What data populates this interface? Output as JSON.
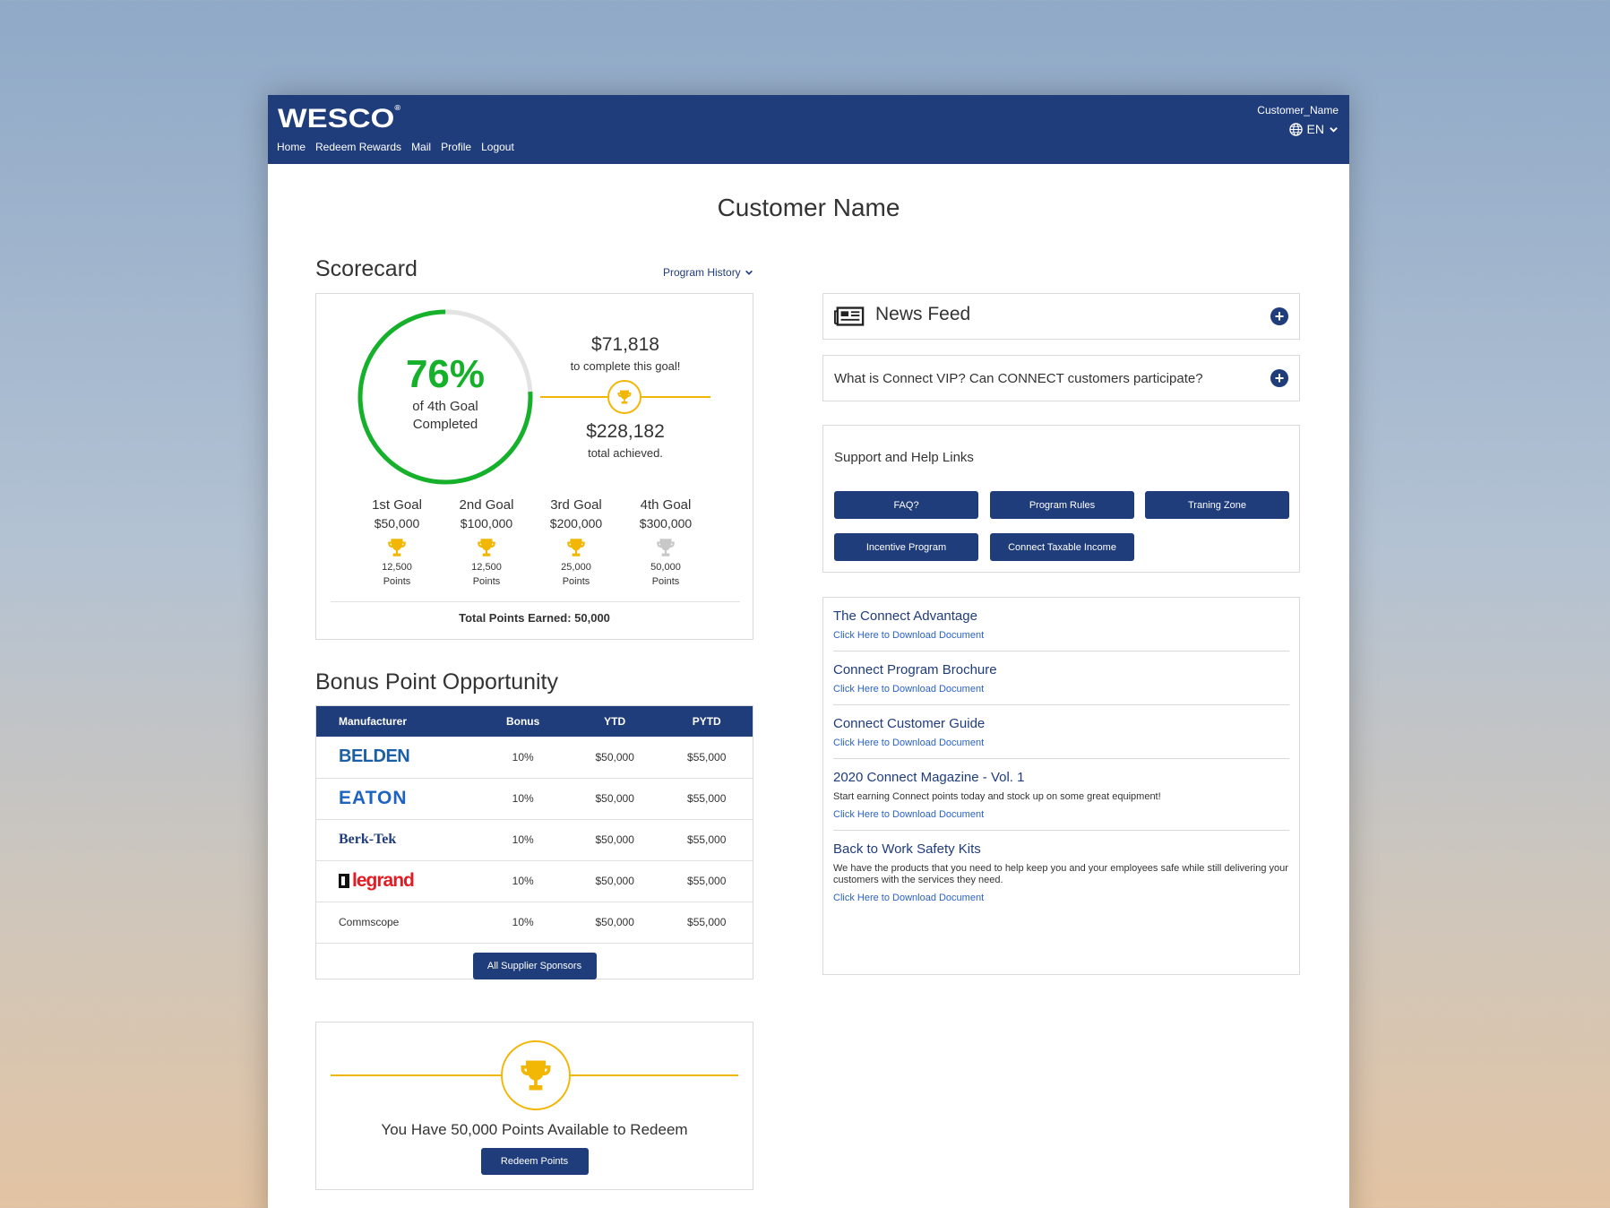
{
  "header": {
    "logo": "WESCO",
    "nav": [
      "Home",
      "Redeem Rewards",
      "Mail",
      "Profile",
      "Logout"
    ],
    "user_name": "Customer_Name",
    "language": "EN"
  },
  "page_title": "Customer Name",
  "scorecard": {
    "title": "Scorecard",
    "program_history": "Program History",
    "percent": "76%",
    "percent_value": 0.76,
    "percent_label_1": "of 4th Goal",
    "percent_label_2": "Completed",
    "to_complete_amount": "$71,818",
    "to_complete_label": "to complete this goal!",
    "achieved_amount": "$228,182",
    "achieved_label": "total achieved.",
    "goals": [
      {
        "name": "1st Goal",
        "amount": "$50,000",
        "points": "12,500",
        "points_label": "Points",
        "achieved": true
      },
      {
        "name": "2nd Goal",
        "amount": "$100,000",
        "points": "12,500",
        "points_label": "Points",
        "achieved": true
      },
      {
        "name": "3rd Goal",
        "amount": "$200,000",
        "points": "25,000",
        "points_label": "Points",
        "achieved": true
      },
      {
        "name": "4th Goal",
        "amount": "$300,000",
        "points": "50,000",
        "points_label": "Points",
        "achieved": false
      }
    ],
    "total_points": "Total Points Earned: 50,000"
  },
  "bonus": {
    "title": "Bonus Point Opportunity",
    "columns": [
      "Manufacturer",
      "Bonus",
      "YTD",
      "PYTD"
    ],
    "rows": [
      {
        "manufacturer": "BELDEN",
        "bonus": "10%",
        "ytd": "$50,000",
        "pytd": "$55,000"
      },
      {
        "manufacturer": "EATON",
        "bonus": "10%",
        "ytd": "$50,000",
        "pytd": "$55,000"
      },
      {
        "manufacturer": "Berk-Tek",
        "bonus": "10%",
        "ytd": "$50,000",
        "pytd": "$55,000"
      },
      {
        "manufacturer": "legrand",
        "bonus": "10%",
        "ytd": "$50,000",
        "pytd": "$55,000"
      },
      {
        "manufacturer": "Commscope",
        "bonus": "10%",
        "ytd": "$50,000",
        "pytd": "$55,000"
      }
    ],
    "sponsors_button": "All Supplier Sponsors"
  },
  "redeem": {
    "text": "You Have 50,000 Points Available to Redeem",
    "button": "Redeem Points"
  },
  "news_feed": {
    "title": "News Feed",
    "faq_question": "What is Connect VIP? Can CONNECT customers participate?"
  },
  "support": {
    "title": "Support and Help Links",
    "buttons": [
      "FAQ?",
      "Program Rules",
      "Traning Zone",
      "Incentive Program",
      "Connect Taxable Income"
    ]
  },
  "documents": [
    {
      "title": "The Connect Advantage",
      "desc": "",
      "link": "Click Here to Download Document"
    },
    {
      "title": "Connect Program Brochure",
      "desc": "",
      "link": "Click Here to Download Document"
    },
    {
      "title": "Connect Customer Guide",
      "desc": "",
      "link": "Click Here to Download Document"
    },
    {
      "title": "2020 Connect Magazine - Vol. 1",
      "desc": "Start earning Connect points today and stock up on some great equipment!",
      "link": "Click Here to Download Document"
    },
    {
      "title": "Back to Work Safety Kits",
      "desc": "We have the products that you need to help keep you and your employees safe while still delivering your customers with the services they need.",
      "link": "Click Here to Download Document"
    }
  ],
  "colors": {
    "brand_blue": "#1f3c7b",
    "progress_green": "#16b12b",
    "trophy_gold": "#f2b705",
    "trophy_gray": "#c8c8c8",
    "link_blue": "#2a62c9"
  }
}
